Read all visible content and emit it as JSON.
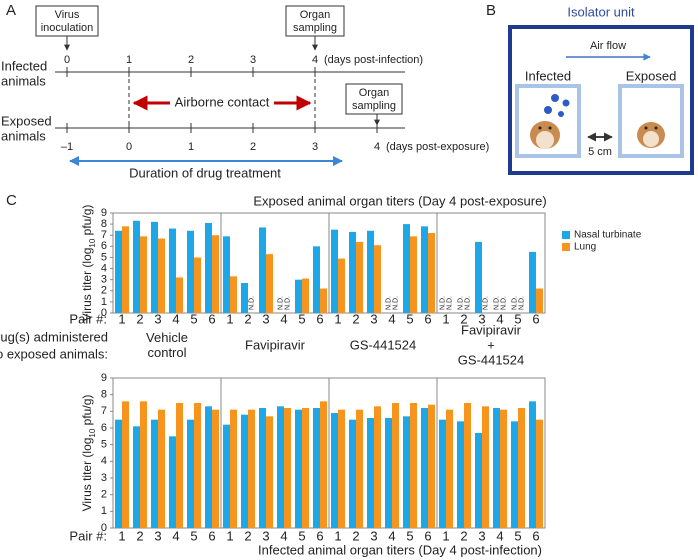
{
  "panel_labels": [
    "A",
    "B",
    "C"
  ],
  "timeline": {
    "virus_inoculation": [
      "Virus",
      "inoculation"
    ],
    "organ_sampling_infected": [
      "Organ",
      "sampling"
    ],
    "organ_sampling_exposed": [
      "Organ",
      "sampling"
    ],
    "infected_label": [
      "Infected",
      "animals"
    ],
    "exposed_label": [
      "Exposed",
      "animals"
    ],
    "infected_days": [
      0,
      1,
      2,
      3,
      4
    ],
    "infected_unit": "(days post-infection)",
    "exposed_days": [
      {
        "value": -1,
        "label": "–1"
      },
      0,
      1,
      2,
      3,
      4
    ],
    "exposed_unit": "(days post-exposure)",
    "airborne_contact": "Airborne contact",
    "drug_treatment": "Duration of drug treatment"
  },
  "isolator": {
    "title": "Isolator unit",
    "air_flow": "Air flow",
    "infected": "Infected",
    "exposed": "Exposed",
    "distance": "5 cm"
  },
  "drug_groups": {
    "label": [
      "Drug(s) administered",
      "to exposed animals:"
    ],
    "names": [
      [
        "Vehicle",
        "control"
      ],
      [
        "Favipiravir"
      ],
      [
        "GS-441524"
      ],
      [
        "Favipiravir",
        "+",
        "GS-441524"
      ]
    ]
  },
  "chart_data": [
    {
      "type": "bar",
      "title": "Exposed animal organ titers (Day 4 post-exposure)",
      "ylabel": {
        "prefix": "Virus titer (log",
        "sub": "10",
        "suffix": " pfu/g)"
      },
      "pair_label": "Pair #:",
      "categories": [
        "1",
        "2",
        "3",
        "4",
        "5",
        "6",
        "1",
        "2",
        "3",
        "4",
        "5",
        "6",
        "1",
        "2",
        "3",
        "4",
        "5",
        "6",
        "1",
        "2",
        "3",
        "4",
        "5",
        "6"
      ],
      "series": [
        {
          "name": "Nasal turbinate",
          "color": "#1ea7e6",
          "values": [
            7.4,
            8.3,
            8.2,
            7.6,
            7.4,
            8.1,
            6.9,
            2.7,
            7.7,
            null,
            3.0,
            6.0,
            7.5,
            7.3,
            7.4,
            null,
            8.0,
            7.8,
            null,
            null,
            6.4,
            null,
            null,
            5.5
          ],
          "value_labels": [
            null,
            null,
            null,
            null,
            null,
            null,
            null,
            null,
            null,
            "N.D.",
            null,
            null,
            null,
            null,
            null,
            "N.D.",
            null,
            null,
            "N.D.",
            "N.D.",
            null,
            "N.D.",
            "N.D.",
            null
          ]
        },
        {
          "name": "Lung",
          "color": "#f7941d",
          "values": [
            7.8,
            6.9,
            6.7,
            3.2,
            5.0,
            7.0,
            3.3,
            null,
            5.3,
            null,
            3.1,
            2.2,
            4.9,
            6.4,
            6.1,
            null,
            6.9,
            7.2,
            null,
            null,
            null,
            null,
            null,
            2.2
          ],
          "value_labels": [
            null,
            null,
            null,
            null,
            null,
            null,
            null,
            "N.D.",
            null,
            "N.D.",
            null,
            null,
            null,
            null,
            null,
            "N.D.",
            null,
            null,
            "N.D.",
            "N.D.",
            "N.D.",
            "N.D.",
            "N.D.",
            null
          ]
        }
      ],
      "ylim": [
        0,
        9
      ],
      "yticks": [
        0,
        1,
        2,
        3,
        4,
        5,
        6,
        7,
        8,
        9
      ],
      "legend": "upper right"
    },
    {
      "type": "bar",
      "xlabel": "Infected animal organ titers (Day 4 post-infection)",
      "ylabel": {
        "prefix": "Virus titer (log",
        "sub": "10",
        "suffix": " pfu/g)"
      },
      "pair_label": "Pair #:",
      "categories": [
        "1",
        "2",
        "3",
        "4",
        "5",
        "6",
        "1",
        "2",
        "3",
        "4",
        "5",
        "6",
        "1",
        "2",
        "3",
        "4",
        "5",
        "6",
        "1",
        "2",
        "3",
        "4",
        "5",
        "6"
      ],
      "series": [
        {
          "color": "#1ea7e6",
          "values": [
            6.5,
            6.1,
            6.5,
            5.5,
            6.5,
            7.3,
            6.2,
            6.8,
            7.2,
            7.3,
            7.1,
            7.2,
            6.9,
            6.5,
            6.6,
            6.6,
            6.7,
            7.2,
            6.5,
            6.4,
            5.7,
            7.2,
            6.4,
            7.6
          ]
        },
        {
          "color": "#f7941d",
          "values": [
            7.6,
            7.6,
            7.1,
            7.5,
            7.5,
            7.1,
            7.1,
            7.1,
            6.7,
            7.2,
            7.2,
            7.6,
            7.1,
            7.1,
            7.3,
            7.5,
            7.5,
            7.4,
            7.1,
            7.5,
            7.3,
            7.1,
            7.2,
            6.5
          ]
        }
      ],
      "ylim": [
        0,
        9
      ],
      "yticks": [
        0,
        1,
        2,
        3,
        4,
        5,
        6,
        7,
        8,
        9
      ]
    }
  ]
}
